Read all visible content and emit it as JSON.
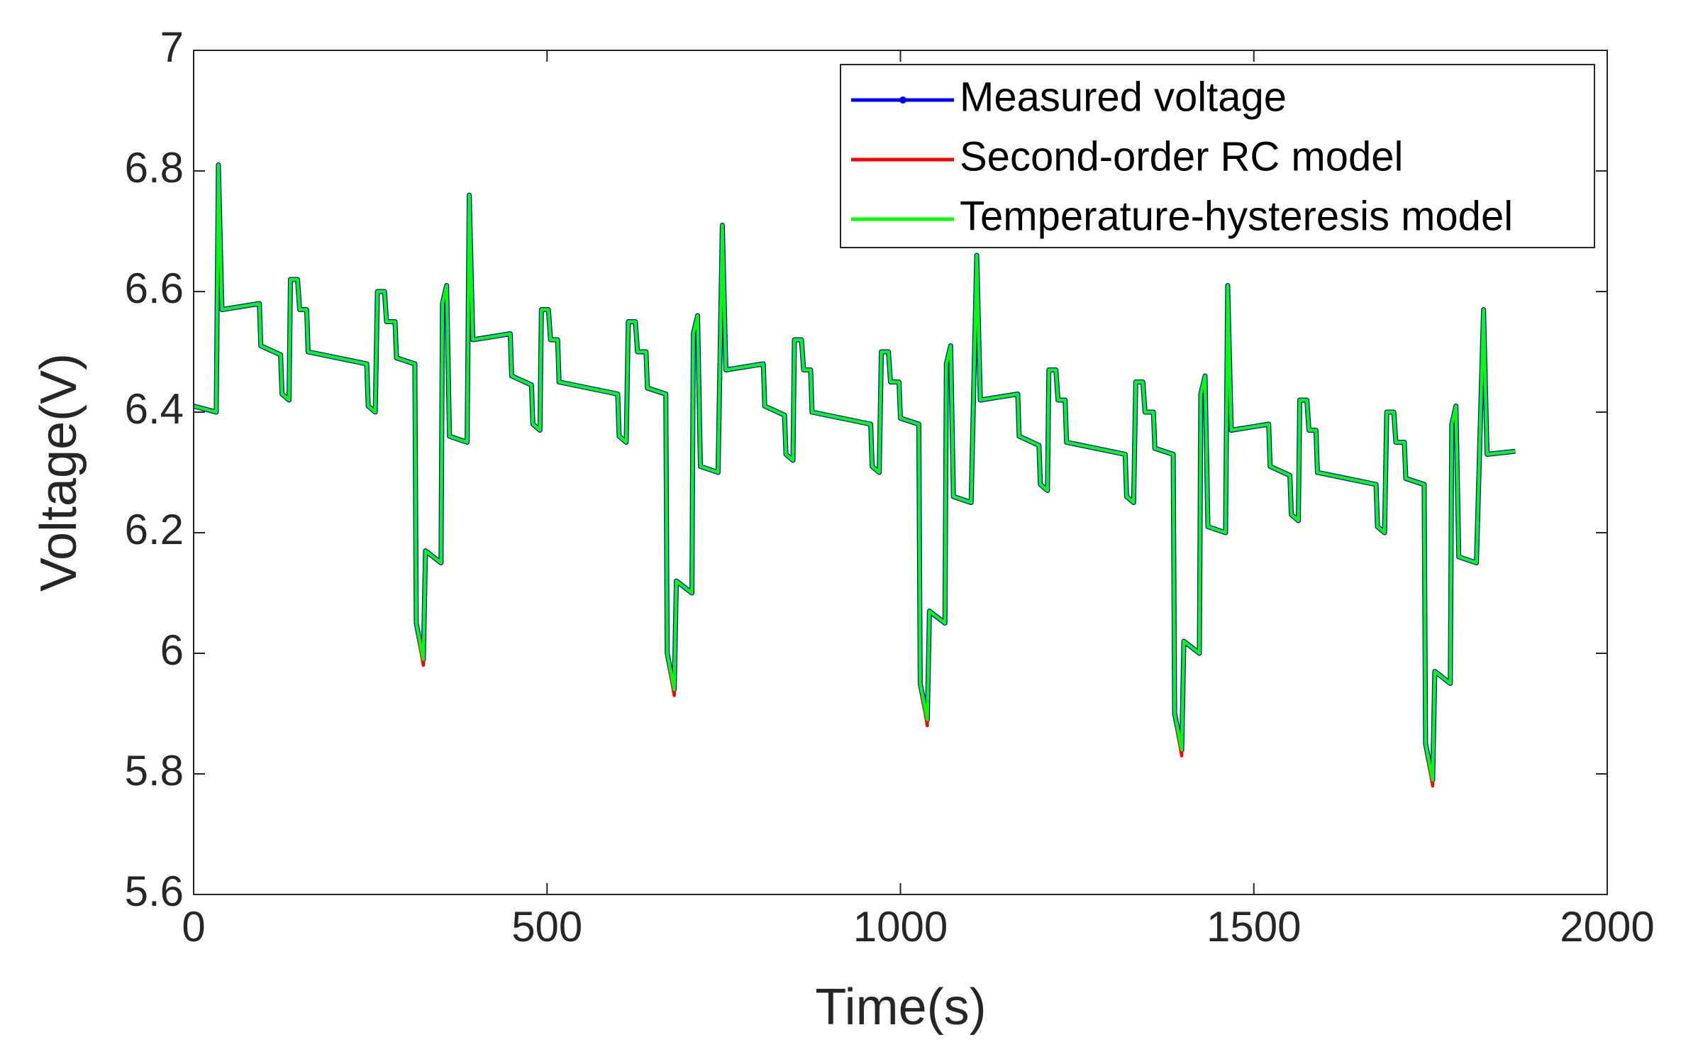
{
  "chart_data": {
    "type": "line",
    "xlabel": "Time(s)",
    "ylabel": "Voltage(V)",
    "xlim": [
      0,
      2000
    ],
    "xticks": [
      0,
      500,
      1000,
      1500,
      2000
    ],
    "ylim": [
      5.6,
      7
    ],
    "yticks": [
      5.6,
      5.8,
      6,
      6.2,
      6.4,
      6.6,
      6.8,
      7
    ],
    "legend": "upper right",
    "x": [
      0,
      32,
      35,
      40,
      93,
      95,
      123,
      125,
      135,
      137,
      147,
      150,
      160,
      162,
      245,
      247,
      257,
      260,
      270,
      273,
      285,
      287,
      313,
      315,
      325,
      328,
      350,
      352,
      358,
      362,
      387,
      390,
      395,
      448,
      450,
      478,
      480,
      490,
      492,
      502,
      505,
      515,
      517,
      600,
      602,
      612,
      615,
      625,
      628,
      640,
      642,
      668,
      670,
      680,
      683,
      705,
      707,
      713,
      717,
      742,
      748,
      753,
      806,
      808,
      836,
      838,
      848,
      850,
      860,
      863,
      873,
      875,
      958,
      960,
      970,
      973,
      983,
      986,
      998,
      1000,
      1026,
      1028,
      1038,
      1041,
      1063,
      1065,
      1071,
      1075,
      1100,
      1108,
      1113,
      1166,
      1168,
      1196,
      1198,
      1208,
      1210,
      1220,
      1223,
      1233,
      1235,
      1318,
      1320,
      1330,
      1333,
      1343,
      1346,
      1358,
      1360,
      1386,
      1388,
      1398,
      1401,
      1423,
      1425,
      1431,
      1435,
      1460,
      1463,
      1468,
      1521,
      1523,
      1551,
      1553,
      1563,
      1565,
      1575,
      1578,
      1588,
      1590,
      1673,
      1675,
      1685,
      1688,
      1698,
      1701,
      1713,
      1715,
      1741,
      1743,
      1753,
      1756,
      1778,
      1780,
      1786,
      1790,
      1815,
      1825,
      1830,
      1870
    ],
    "series": [
      {
        "name": "Measured voltage",
        "color": "#0000ff",
        "values": [
          6.41,
          6.4,
          6.81,
          6.57,
          6.58,
          6.51,
          6.495,
          6.43,
          6.42,
          6.62,
          6.62,
          6.57,
          6.57,
          6.5,
          6.48,
          6.41,
          6.4,
          6.6,
          6.6,
          6.55,
          6.55,
          6.49,
          6.48,
          6.05,
          5.99,
          6.17,
          6.15,
          6.58,
          6.61,
          6.36,
          6.35,
          6.76,
          6.52,
          6.53,
          6.46,
          6.445,
          6.38,
          6.37,
          6.57,
          6.57,
          6.52,
          6.52,
          6.45,
          6.43,
          6.36,
          6.35,
          6.55,
          6.55,
          6.5,
          6.5,
          6.44,
          6.43,
          6.0,
          5.94,
          6.12,
          6.1,
          6.53,
          6.56,
          6.31,
          6.3,
          6.71,
          6.47,
          6.48,
          6.41,
          6.395,
          6.33,
          6.32,
          6.52,
          6.52,
          6.47,
          6.47,
          6.4,
          6.38,
          6.31,
          6.3,
          6.5,
          6.5,
          6.45,
          6.45,
          6.39,
          6.38,
          5.95,
          5.89,
          6.07,
          6.05,
          6.48,
          6.51,
          6.26,
          6.25,
          6.66,
          6.42,
          6.43,
          6.36,
          6.345,
          6.28,
          6.27,
          6.47,
          6.47,
          6.42,
          6.42,
          6.35,
          6.33,
          6.26,
          6.25,
          6.45,
          6.45,
          6.4,
          6.4,
          6.34,
          6.33,
          5.9,
          5.84,
          6.02,
          6.0,
          6.43,
          6.46,
          6.21,
          6.2,
          6.61,
          6.37,
          6.38,
          6.31,
          6.295,
          6.23,
          6.22,
          6.42,
          6.42,
          6.37,
          6.37,
          6.3,
          6.28,
          6.21,
          6.2,
          6.4,
          6.4,
          6.35,
          6.35,
          6.29,
          6.28,
          5.85,
          5.79,
          5.97,
          5.95,
          6.38,
          6.41,
          6.16,
          6.15,
          6.57,
          6.33,
          6.335
        ]
      },
      {
        "name": "Second-order RC model",
        "color": "#ff0000",
        "values": [
          6.41,
          6.4,
          6.81,
          6.57,
          6.58,
          6.51,
          6.495,
          6.43,
          6.42,
          6.62,
          6.62,
          6.57,
          6.57,
          6.5,
          6.48,
          6.41,
          6.4,
          6.6,
          6.6,
          6.55,
          6.55,
          6.49,
          6.48,
          6.05,
          5.98,
          6.17,
          6.15,
          6.58,
          6.61,
          6.36,
          6.35,
          6.76,
          6.52,
          6.53,
          6.46,
          6.445,
          6.38,
          6.37,
          6.57,
          6.57,
          6.52,
          6.52,
          6.45,
          6.43,
          6.36,
          6.35,
          6.55,
          6.55,
          6.5,
          6.5,
          6.44,
          6.43,
          6.0,
          5.93,
          6.12,
          6.1,
          6.53,
          6.56,
          6.31,
          6.3,
          6.71,
          6.47,
          6.48,
          6.41,
          6.395,
          6.33,
          6.32,
          6.52,
          6.52,
          6.47,
          6.47,
          6.4,
          6.38,
          6.31,
          6.3,
          6.5,
          6.5,
          6.45,
          6.45,
          6.39,
          6.38,
          5.95,
          5.88,
          6.07,
          6.05,
          6.48,
          6.51,
          6.26,
          6.25,
          6.66,
          6.42,
          6.43,
          6.36,
          6.345,
          6.28,
          6.27,
          6.47,
          6.47,
          6.42,
          6.42,
          6.35,
          6.33,
          6.26,
          6.25,
          6.45,
          6.45,
          6.4,
          6.4,
          6.34,
          6.33,
          5.9,
          5.83,
          6.02,
          6.0,
          6.43,
          6.46,
          6.21,
          6.2,
          6.61,
          6.37,
          6.38,
          6.31,
          6.295,
          6.23,
          6.22,
          6.42,
          6.42,
          6.37,
          6.37,
          6.3,
          6.28,
          6.21,
          6.2,
          6.4,
          6.4,
          6.35,
          6.35,
          6.29,
          6.28,
          5.85,
          5.78,
          5.97,
          5.95,
          6.38,
          6.41,
          6.16,
          6.15,
          6.57,
          6.33,
          6.335
        ]
      },
      {
        "name": "Temperature-hysteresis model",
        "color": "#00ff00",
        "values": [
          6.41,
          6.4,
          6.81,
          6.57,
          6.58,
          6.51,
          6.495,
          6.43,
          6.42,
          6.62,
          6.62,
          6.57,
          6.57,
          6.5,
          6.48,
          6.41,
          6.4,
          6.6,
          6.6,
          6.55,
          6.55,
          6.49,
          6.48,
          6.05,
          5.99,
          6.17,
          6.15,
          6.58,
          6.61,
          6.36,
          6.35,
          6.76,
          6.52,
          6.53,
          6.46,
          6.445,
          6.38,
          6.37,
          6.57,
          6.57,
          6.52,
          6.52,
          6.45,
          6.43,
          6.36,
          6.35,
          6.55,
          6.55,
          6.5,
          6.5,
          6.44,
          6.43,
          6.0,
          5.94,
          6.12,
          6.1,
          6.53,
          6.56,
          6.31,
          6.3,
          6.71,
          6.47,
          6.48,
          6.41,
          6.395,
          6.33,
          6.32,
          6.52,
          6.52,
          6.47,
          6.47,
          6.4,
          6.38,
          6.31,
          6.3,
          6.5,
          6.5,
          6.45,
          6.45,
          6.39,
          6.38,
          5.95,
          5.89,
          6.07,
          6.05,
          6.48,
          6.51,
          6.26,
          6.25,
          6.66,
          6.42,
          6.43,
          6.36,
          6.345,
          6.28,
          6.27,
          6.47,
          6.47,
          6.42,
          6.42,
          6.35,
          6.33,
          6.26,
          6.25,
          6.45,
          6.45,
          6.4,
          6.4,
          6.34,
          6.33,
          5.9,
          5.84,
          6.02,
          6.0,
          6.43,
          6.46,
          6.21,
          6.2,
          6.61,
          6.37,
          6.38,
          6.31,
          6.295,
          6.23,
          6.22,
          6.42,
          6.42,
          6.37,
          6.37,
          6.3,
          6.28,
          6.21,
          6.2,
          6.4,
          6.4,
          6.35,
          6.35,
          6.29,
          6.28,
          5.85,
          5.79,
          5.97,
          5.95,
          6.38,
          6.41,
          6.16,
          6.15,
          6.57,
          6.33,
          6.335
        ]
      }
    ]
  }
}
